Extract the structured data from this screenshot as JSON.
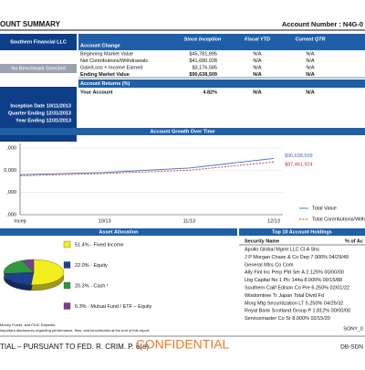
{
  "header": {
    "title": "OUNT SUMMARY",
    "account": "Account Number : N4G-0"
  },
  "sidebar": {
    "firm": "Southern Financial LLC",
    "benchmark": "No Benchmark Selected",
    "dates": [
      "Inception Date 10/11/2013",
      "Quarter Ending 12/31/2013",
      "Year Ending 12/31/2013"
    ]
  },
  "account_change": {
    "columns": [
      "Account Change",
      "Since Inception",
      "Fiscal YTD",
      "Current QTR"
    ],
    "rows": [
      [
        "Beginning Market Value",
        "$45,781,895",
        "N/A",
        "N/A"
      ],
      [
        "Net Contributions/Withdrawals",
        "$41,680,028",
        "N/A",
        "N/A"
      ],
      [
        "Gain/Loss + Income Earned",
        "$3,176,585",
        "N/A",
        "N/A"
      ],
      [
        "Ending Market Value",
        "$90,638,509",
        "N/A",
        "N/A"
      ]
    ]
  },
  "returns": {
    "title": "Account Returns (%)",
    "rows": [
      [
        "Your Account",
        "4.82%",
        "N/A",
        "N/A"
      ]
    ]
  },
  "growth_chart": {
    "type": "line",
    "title": "Account Growth Over Time",
    "categories": [
      "Incep",
      "10/13",
      "11/13",
      "12/13"
    ],
    "series": [
      {
        "name": "Total Value",
        "color": "#3b6fcf",
        "values": [
          76000000,
          78000000,
          82000000,
          90638509
        ],
        "value_labels": [
          null,
          null,
          null,
          "$90,638,509"
        ]
      },
      {
        "name": "Total Contributions/With",
        "color": "#c0392b",
        "values": [
          75000000,
          77000000,
          80000000,
          87461924
        ],
        "value_labels": [
          null,
          null,
          null,
          "$87,461,924"
        ]
      }
    ],
    "ylim": [
      40000000,
      100000000
    ],
    "yticks": [
      {
        "value": 100000000,
        "label": ",000"
      },
      {
        "value": 80000000,
        "label": "0,000"
      },
      {
        "value": 60000000,
        "label": ",000"
      },
      {
        "value": 40000000,
        "label": ",000"
      }
    ]
  },
  "allocation": {
    "type": "pie",
    "title": "Asset Allocation",
    "labels": [
      "51.4% - Fixed Income",
      "22.0% - Equity",
      "20.3% - Cash ¹",
      "6.3% - Mutual Fund / ETF – Equity"
    ],
    "values": [
      51.4,
      22.0,
      20.3,
      6.3
    ],
    "colors": [
      "#f2ee1c",
      "#1f3f8f",
      "#2e9a3c",
      "#7a3f8f"
    ]
  },
  "holdings": {
    "title": "Top 10 Account Holdings",
    "columns": [
      "Security Name",
      "% of Ac"
    ],
    "rows": [
      "Apollo Global Mgmt LLC Cl A Shs",
      "J P Morgan Chase & Co Dep  7.900% 04/29/49",
      "General Mtrs Co Com",
      "Ally Finl Inc Perp Pfd Ser A 2.125% 00/00/00",
      "Lbg Capital No 1 Plc 144a 8.000% 09/15/88",
      "Southern Calif Edison Co Pre 6.250% 02/01/22",
      "Wisdomtree Tr Japan Total Divid Fd",
      "Morg Mtg Securitization LT 5.250% 04/25/32",
      "Royal Bank Scotland Group P 1.812% 00/00/00",
      "Servicemaster Co Sr   8.000% 02/15/20"
    ]
  },
  "footer": {
    "notes": [
      "Money Funds, and FDIC Deposits.",
      "important disclosures regarding performance, fees, and benchmarks at the end of this report."
    ],
    "ids": [
      "SONY_0",
      "DB-SDN"
    ],
    "legal": "TIAL – PURSUANT TO FED. R. CRIM. P. 6(e)",
    "stamp": "CONFIDENTIAL"
  }
}
